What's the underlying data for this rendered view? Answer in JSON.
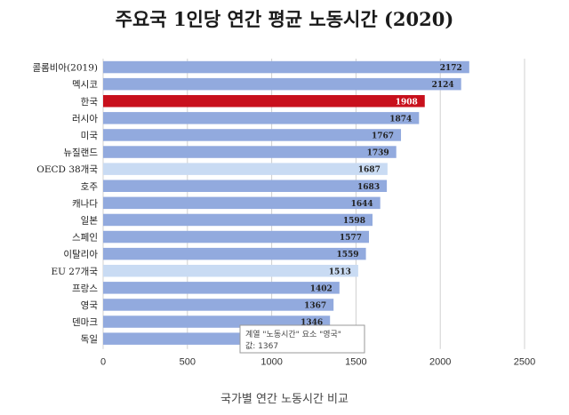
{
  "title": "주요국 1인당 연간 평균 노동시간 (2020)",
  "caption": "국가별 연간 노동시간 비교",
  "colors": {
    "bar": "#92aade",
    "highlight": "#c8101c",
    "aggregate": "#c9dbf3",
    "grid": "#d0d0d0"
  },
  "tooltip": {
    "line1": "계열 \"노동시간\" 요소 \"영국\"",
    "line2": "값: 1367"
  },
  "chart_data": {
    "type": "bar",
    "orientation": "horizontal",
    "title": "주요국 1인당 연간 평균 노동시간 (2020)",
    "xlim": [
      0,
      2500
    ],
    "xticks": [
      "0",
      "500",
      "1000",
      "1500",
      "2000",
      "2500"
    ],
    "grid": true,
    "series": [
      {
        "name": "노동시간",
        "values": [
          2172,
          2124,
          1908,
          1874,
          1767,
          1739,
          1687,
          1683,
          1644,
          1598,
          1577,
          1559,
          1513,
          1402,
          1367,
          1346,
          1335
        ]
      }
    ],
    "categories": [
      "콜롬비아(2019)",
      "멕시코",
      "한국",
      "러시아",
      "미국",
      "뉴질랜드",
      "OECD 38개국",
      "호주",
      "캐나다",
      "일본",
      "스페인",
      "이탈리아",
      "EU 27개국",
      "프랑스",
      "영국",
      "덴마크",
      "독일"
    ],
    "values": [
      2172,
      2124,
      1908,
      1874,
      1767,
      1739,
      1687,
      1683,
      1644,
      1598,
      1577,
      1559,
      1513,
      1402,
      1367,
      1346,
      1335
    ],
    "labels": [
      "2172",
      "2124",
      "1908",
      "1874",
      "1767",
      "1739",
      "1687",
      "1683",
      "1644",
      "1598",
      "1577",
      "1559",
      "1513",
      "1402",
      "1367",
      "1346",
      ""
    ],
    "highlight": [
      "한국"
    ],
    "aggregates": [
      "OECD 38개국",
      "EU 27개국"
    ]
  }
}
